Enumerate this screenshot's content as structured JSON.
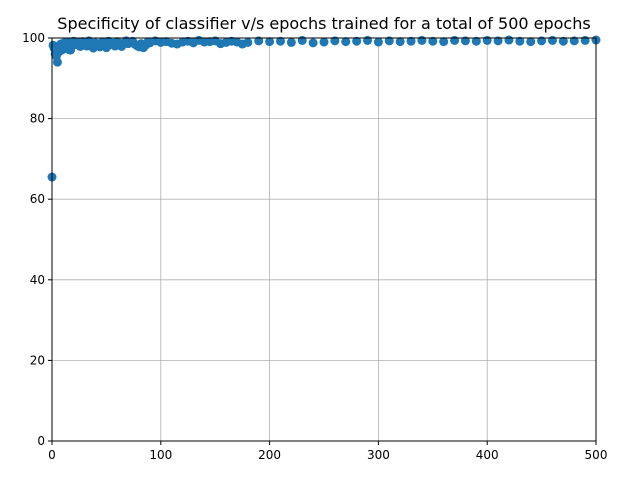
{
  "chart_data": {
    "type": "scatter",
    "title": "Specificity of classifier v/s epochs trained for a total of 500 epochs",
    "xlabel": "",
    "ylabel": "",
    "xlim": [
      0,
      500
    ],
    "ylim": [
      0,
      100
    ],
    "grid": true,
    "x_ticks": [
      0,
      100,
      200,
      300,
      400,
      500
    ],
    "y_ticks": [
      0,
      20,
      40,
      60,
      80,
      100
    ],
    "marker_color": "#1f77b4",
    "series": [
      {
        "x": [
          0,
          1,
          2,
          3,
          4,
          5,
          6,
          7,
          8,
          9,
          10,
          11,
          12,
          13,
          14,
          15,
          16,
          17,
          18,
          19,
          20,
          22,
          24,
          26,
          28,
          30,
          32,
          34,
          36,
          38,
          40,
          42,
          44,
          46,
          48,
          50,
          52,
          54,
          56,
          58,
          60,
          62,
          64,
          66,
          68,
          70,
          72,
          74,
          76,
          78,
          80,
          82,
          84,
          86,
          88,
          90,
          95,
          100,
          105,
          110,
          115,
          120,
          125,
          130,
          135,
          140,
          145,
          150,
          155,
          160,
          165,
          170,
          175,
          180,
          190,
          200,
          210,
          220,
          230,
          240,
          250,
          260,
          270,
          280,
          290,
          300,
          310,
          320,
          330,
          340,
          350,
          360,
          370,
          380,
          390,
          400,
          410,
          420,
          430,
          440,
          450,
          460,
          470,
          480,
          490,
          500
        ],
        "y": [
          65.5,
          98.2,
          97.5,
          96.0,
          95.5,
          94.0,
          96.5,
          97.8,
          98.5,
          97.0,
          98.0,
          98.8,
          97.5,
          98.3,
          99.0,
          97.2,
          98.6,
          97.0,
          98.9,
          98.1,
          99.2,
          98.4,
          98.9,
          97.9,
          99.1,
          98.6,
          98.0,
          99.3,
          98.2,
          97.5,
          98.8,
          98.3,
          97.8,
          99.0,
          98.5,
          97.6,
          99.2,
          98.4,
          98.7,
          98.0,
          99.1,
          98.3,
          97.9,
          98.8,
          99.3,
          98.6,
          98.9,
          99.2,
          98.5,
          98.1,
          97.8,
          98.6,
          97.6,
          98.2,
          99.0,
          98.8,
          99.3,
          98.9,
          99.1,
          98.7,
          98.5,
          99.0,
          99.2,
          98.8,
          99.4,
          99.0,
          99.1,
          99.3,
          98.6,
          98.9,
          99.2,
          99.0,
          98.5,
          98.9,
          99.3,
          99.1,
          99.2,
          98.9,
          99.4,
          98.8,
          99.0,
          99.3,
          99.1,
          99.2,
          99.4,
          99.0,
          99.3,
          99.1,
          99.2,
          99.4,
          99.2,
          99.1,
          99.4,
          99.3,
          99.2,
          99.4,
          99.3,
          99.5,
          99.2,
          99.1,
          99.3,
          99.4,
          99.2,
          99.3,
          99.4,
          99.5
        ]
      }
    ]
  }
}
